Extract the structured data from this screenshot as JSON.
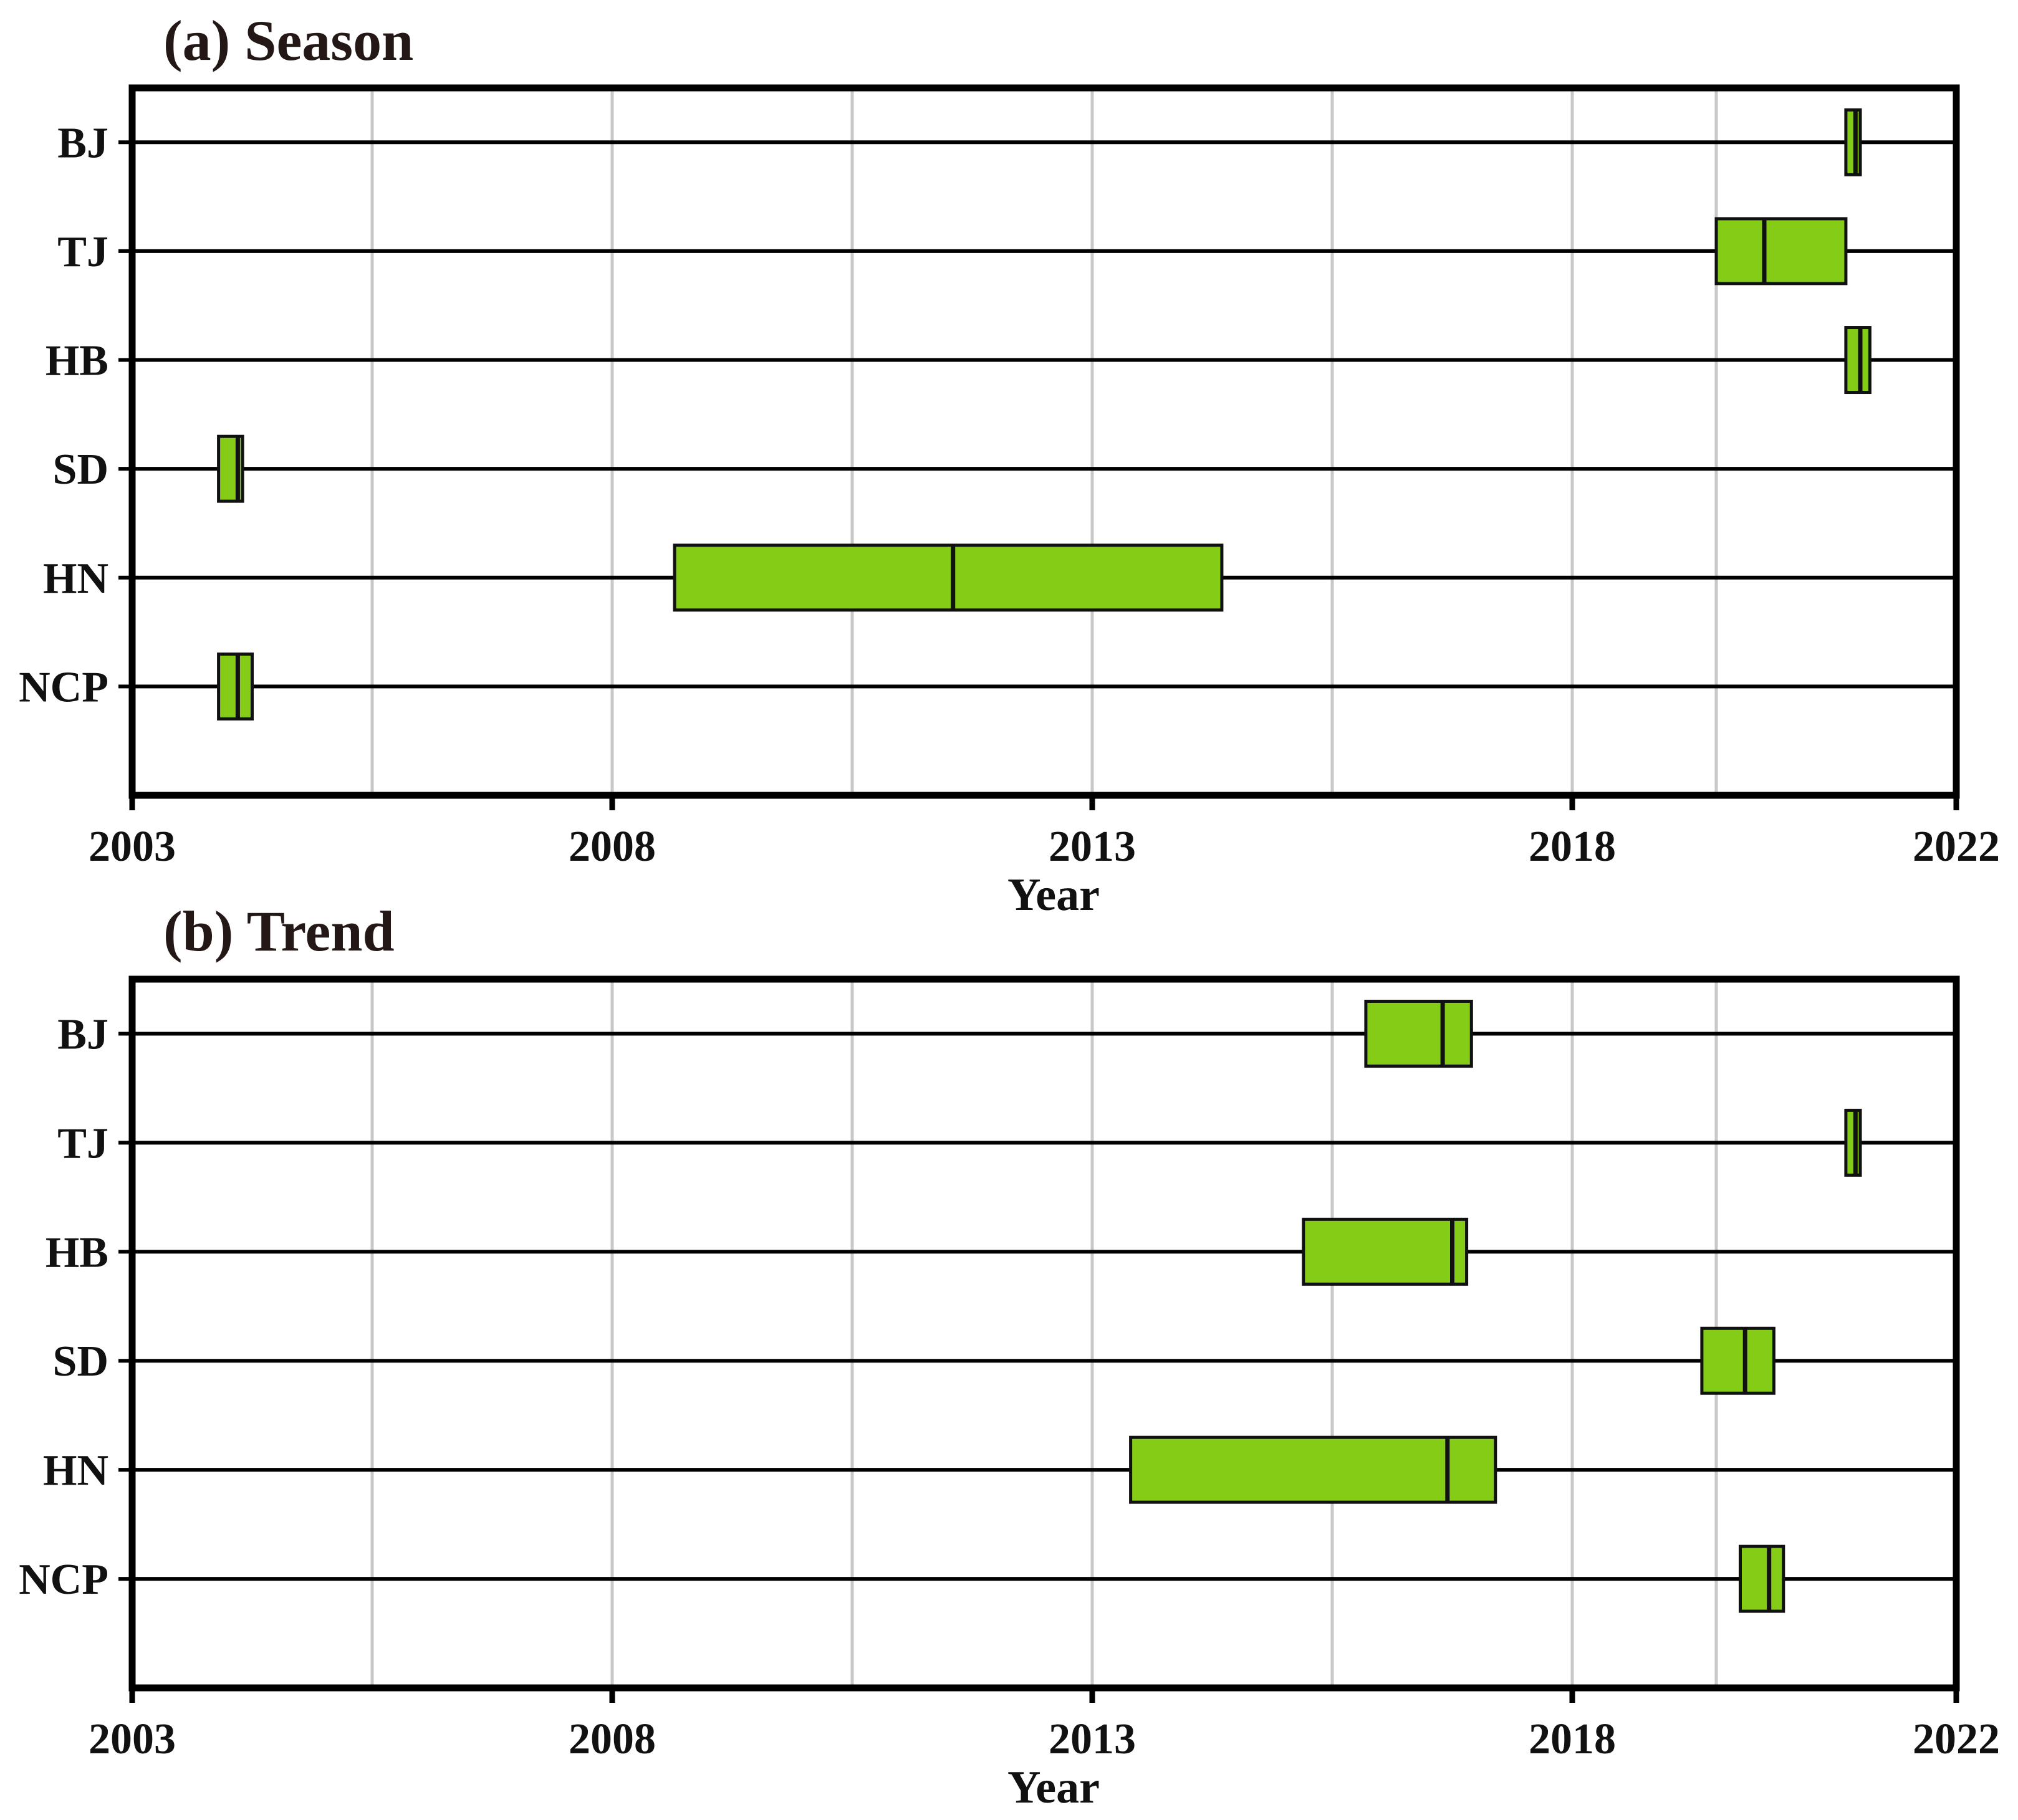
{
  "colors": {
    "box_fill": "#84cc16",
    "box_stroke": "#111111",
    "grid": "#c8c8c8",
    "axis": "#000000"
  },
  "chart_data": [
    {
      "type": "box",
      "title": "(a) Season",
      "xlabel": "Year",
      "ylabel": "",
      "xlim": [
        2003,
        2022
      ],
      "x_ticks": [
        "2003",
        "2008",
        "2013",
        "2018",
        "2022"
      ],
      "grid": true,
      "categories": [
        "BJ",
        "TJ",
        "HB",
        "SD",
        "HN",
        "NCP"
      ],
      "boxes": [
        {
          "category": "BJ",
          "low": 2020.85,
          "median": 2020.95,
          "high": 2021.0
        },
        {
          "category": "TJ",
          "low": 2019.5,
          "median": 2020.0,
          "high": 2020.85
        },
        {
          "category": "HB",
          "low": 2020.85,
          "median": 2021.0,
          "high": 2021.1
        },
        {
          "category": "SD",
          "low": 2003.9,
          "median": 2004.1,
          "high": 2004.15
        },
        {
          "category": "HN",
          "low": 2008.65,
          "median": 2011.55,
          "high": 2014.35
        },
        {
          "category": "NCP",
          "low": 2003.9,
          "median": 2004.1,
          "high": 2004.25
        }
      ]
    },
    {
      "type": "box",
      "title": "(b) Trend",
      "xlabel": "Year",
      "ylabel": "",
      "xlim": [
        2003,
        2022
      ],
      "x_ticks": [
        "2003",
        "2008",
        "2013",
        "2018",
        "2022"
      ],
      "grid": true,
      "categories": [
        "BJ",
        "TJ",
        "HB",
        "SD",
        "HN",
        "NCP"
      ],
      "boxes": [
        {
          "category": "BJ",
          "low": 2015.85,
          "median": 2016.65,
          "high": 2016.95
        },
        {
          "category": "TJ",
          "low": 2020.85,
          "median": 2020.95,
          "high": 2021.0
        },
        {
          "category": "HB",
          "low": 2015.2,
          "median": 2016.75,
          "high": 2016.9
        },
        {
          "category": "SD",
          "low": 2019.35,
          "median": 2019.8,
          "high": 2020.1
        },
        {
          "category": "HN",
          "low": 2013.4,
          "median": 2016.7,
          "high": 2017.2
        },
        {
          "category": "NCP",
          "low": 2019.75,
          "median": 2020.05,
          "high": 2020.2
        }
      ]
    }
  ]
}
